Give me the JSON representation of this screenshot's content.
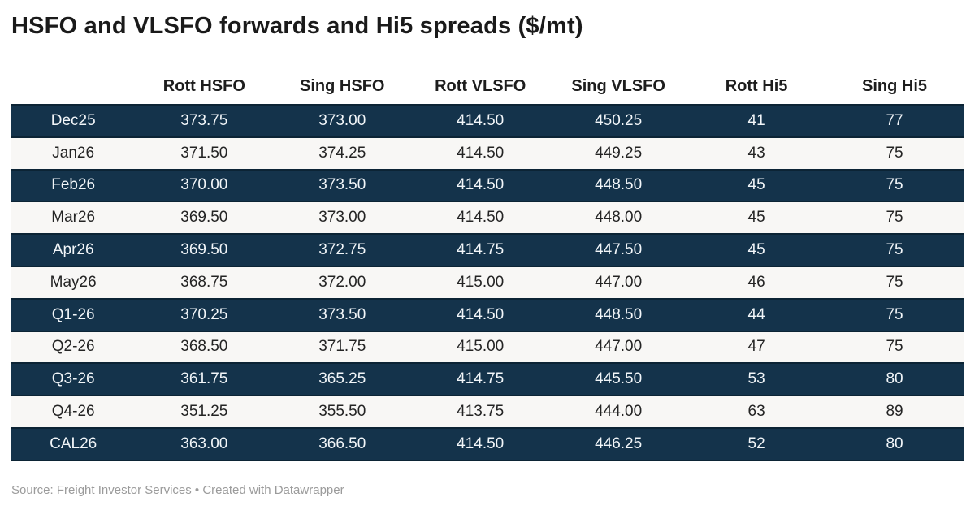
{
  "title": "HSFO and VLSFO forwards and Hi5 spreads ($/mt)",
  "footer": {
    "text": "Source: Freight Investor Services • Created with Datawrapper"
  },
  "colors": {
    "page_bg": "#ffffff",
    "title_text": "#1a1a1a",
    "header_text": "#1d1d1d",
    "row_dark": "#14334b",
    "row_dark_border": "#0c2435",
    "row_light": "#f8f7f5",
    "text_on_dark": "#f2f6f9",
    "text_on_light": "#242424",
    "footer_text": "#9b9b9b"
  },
  "chart_data": {
    "type": "table",
    "title": "HSFO and VLSFO forwards and Hi5 spreads ($/mt)",
    "columns": [
      "",
      "Rott HSFO",
      "Sing HSFO",
      "Rott VLSFO",
      "Sing VLSFO",
      "Rott Hi5",
      "Sing Hi5"
    ],
    "rows": [
      {
        "label": "Dec25",
        "values": [
          "373.75",
          "373.00",
          "414.50",
          "450.25",
          "41",
          "77"
        ]
      },
      {
        "label": "Jan26",
        "values": [
          "371.50",
          "374.25",
          "414.50",
          "449.25",
          "43",
          "75"
        ]
      },
      {
        "label": "Feb26",
        "values": [
          "370.00",
          "373.50",
          "414.50",
          "448.50",
          "45",
          "75"
        ]
      },
      {
        "label": "Mar26",
        "values": [
          "369.50",
          "373.00",
          "414.50",
          "448.00",
          "45",
          "75"
        ]
      },
      {
        "label": "Apr26",
        "values": [
          "369.50",
          "372.75",
          "414.75",
          "447.50",
          "45",
          "75"
        ]
      },
      {
        "label": "May26",
        "values": [
          "368.75",
          "372.00",
          "415.00",
          "447.00",
          "46",
          "75"
        ]
      },
      {
        "label": "Q1-26",
        "values": [
          "370.25",
          "373.50",
          "414.50",
          "448.50",
          "44",
          "75"
        ]
      },
      {
        "label": "Q2-26",
        "values": [
          "368.50",
          "371.75",
          "415.00",
          "447.00",
          "47",
          "75"
        ]
      },
      {
        "label": "Q3-26",
        "values": [
          "361.75",
          "365.25",
          "414.75",
          "445.50",
          "53",
          "80"
        ]
      },
      {
        "label": "Q4-26",
        "values": [
          "351.25",
          "355.50",
          "413.75",
          "444.00",
          "63",
          "89"
        ]
      },
      {
        "label": "CAL26",
        "values": [
          "363.00",
          "366.50",
          "414.50",
          "446.25",
          "52",
          "80"
        ]
      }
    ],
    "source": "Freight Investor Services",
    "attribution": "Created with Datawrapper",
    "row_striping": "alternating dark navy / off-white, starting dark"
  }
}
